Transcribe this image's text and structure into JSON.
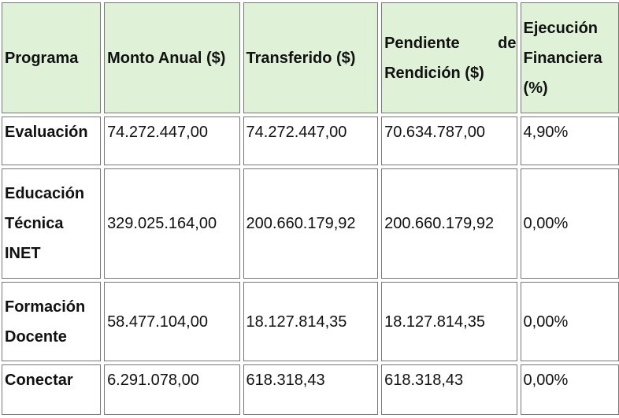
{
  "table": {
    "headers": {
      "programa": "Programa",
      "monto": "Monto Anual ($)",
      "transferido": "Transferido ($)",
      "pendiente_line1": "Pendiente de",
      "pendiente_line2": "Rendición ($)",
      "ejecucion_line1": "Ejecución",
      "ejecucion_line2": "Financiera",
      "ejecucion_line3": "(%)"
    },
    "rows": [
      {
        "programa_l1": "Evaluación",
        "monto": "74.272.447,00",
        "transferido": "74.272.447,00",
        "pendiente": "70.634.787,00",
        "ejecucion": "4,90%"
      },
      {
        "programa_l1": "Educación",
        "programa_l2": "Técnica",
        "programa_l3": "INET",
        "monto": "329.025.164,00",
        "transferido": "200.660.179,92",
        "pendiente": "200.660.179,92",
        "ejecucion": "0,00%"
      },
      {
        "programa_l1": "Formación",
        "programa_l2": "Docente",
        "monto": "58.477.104,00",
        "transferido": "18.127.814,35",
        "pendiente": "18.127.814,35",
        "ejecucion": "0,00%"
      },
      {
        "programa_l1": "Conectar",
        "monto": "6.291.078,00",
        "transferido": "618.318,43",
        "pendiente": "618.318,43",
        "ejecucion": "0,00%"
      }
    ]
  }
}
